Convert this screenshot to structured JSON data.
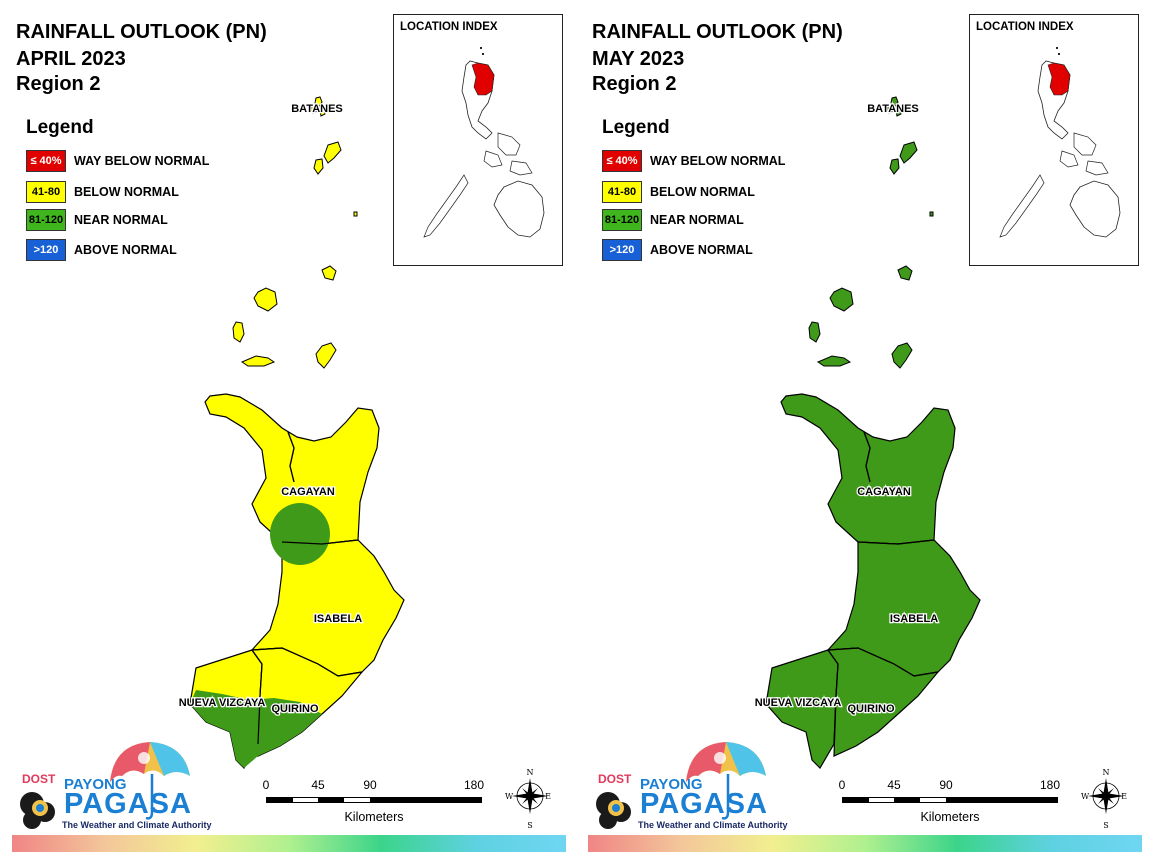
{
  "maps": [
    {
      "title": "RAINFALL OUTLOOK (PN)",
      "month": "APRIL 2023",
      "region": "Region 2",
      "fills": {
        "batanes": "#ffff00",
        "islands": "#ffff00",
        "cagayan": "#ffff00",
        "isabela": "#ffff00",
        "quirino": "#ffff00",
        "nueva_vizcaya": "#ffff00"
      },
      "patches": true
    },
    {
      "title": "RAINFALL OUTLOOK (PN)",
      "month": "MAY 2023",
      "region": "Region 2",
      "fills": {
        "batanes": "#3f9a1a",
        "islands": "#3f9a1a",
        "cagayan": "#3f9a1a",
        "isabela": "#3f9a1a",
        "quirino": "#3f9a1a",
        "nueva_vizcaya": "#3f9a1a"
      },
      "patches": false
    }
  ],
  "legend": {
    "title": "Legend",
    "items": [
      {
        "range": "≤ 40%",
        "label": "WAY BELOW NORMAL",
        "color": "#e00000",
        "text_color": "#ffffff"
      },
      {
        "range": "41-80",
        "label": "BELOW NORMAL",
        "color": "#ffff00",
        "text_color": "#000000"
      },
      {
        "range": "81-120",
        "label": "NEAR NORMAL",
        "color": "#3fb51e",
        "text_color": "#000000"
      },
      {
        "range": ">120",
        "label": "ABOVE NORMAL",
        "color": "#1760d6",
        "text_color": "#ffffff"
      }
    ]
  },
  "provinces": {
    "batanes": "BATANES",
    "cagayan": "CAGAYAN",
    "isabela": "ISABELA",
    "nueva_vizcaya": "NUEVA VIZCAYA",
    "quirino": "QUIRINO"
  },
  "inset": {
    "label": "LOCATION INDEX",
    "highlight_color": "#e00000"
  },
  "scale": {
    "ticks": [
      "0",
      "45",
      "90",
      "180"
    ],
    "unit": "Kilometers"
  },
  "compass": {
    "n": "N",
    "s": "S",
    "e": "E",
    "w": "W"
  },
  "logo": {
    "dost": "DOST",
    "payong": "PAYONG",
    "pagasa": "PAGASA",
    "tagline": "The Weather and Climate Authority"
  }
}
